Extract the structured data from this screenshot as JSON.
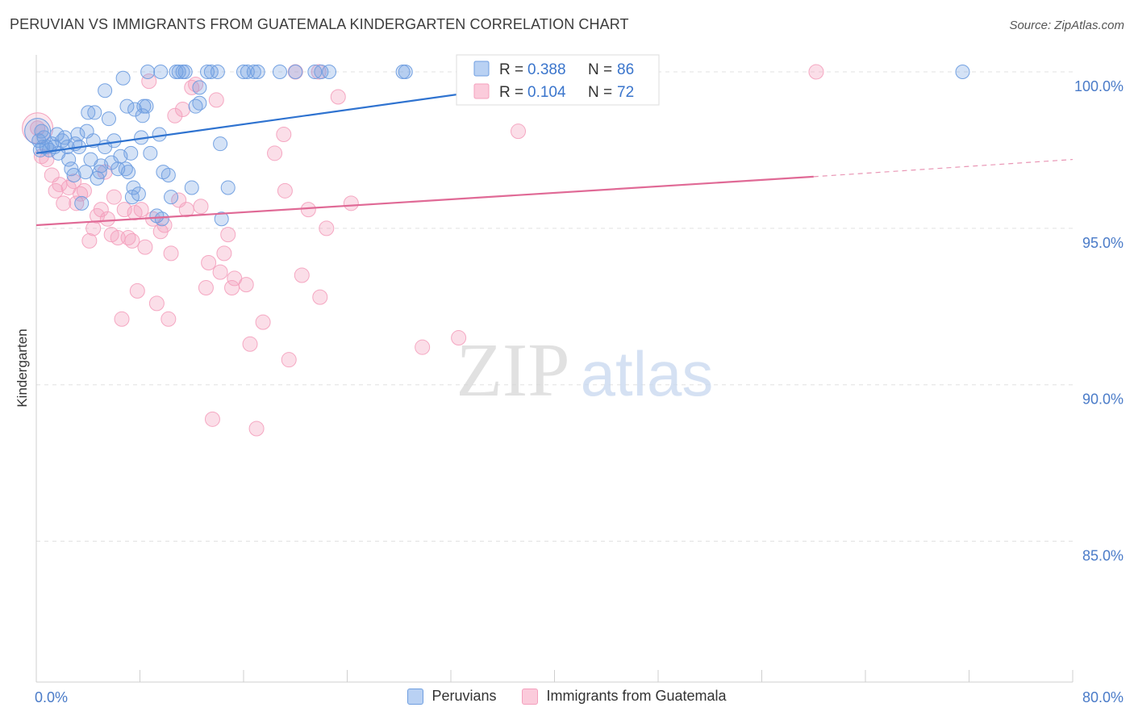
{
  "title": "PERUVIAN VS IMMIGRANTS FROM GUATEMALA KINDERGARTEN CORRELATION CHART",
  "source": "Source: ZipAtlas.com",
  "watermark": {
    "zip": "ZIP",
    "atlas": "atlas"
  },
  "colors": {
    "blue": "#6f9ee0",
    "blue_line": "#2f73d0",
    "pink": "#f4a0bd",
    "pink_line": "#e06a96",
    "axis_text": "#4a7bc8"
  },
  "stats": {
    "r_label": "R =",
    "n_label": "N =",
    "peruvians": {
      "r": "0.388",
      "n": "86"
    },
    "guatemala": {
      "r": "0.104",
      "n": "72"
    }
  },
  "legend": {
    "peruvians": "Peruvians",
    "guatemala": "Immigrants from Guatemala"
  },
  "chart_data": {
    "type": "scatter",
    "title": "PERUVIAN VS IMMIGRANTS FROM GUATEMALA KINDERGARTEN CORRELATION CHART",
    "xlabel": "",
    "ylabel": "Kindergarten",
    "xlim": [
      0,
      80
    ],
    "ylim": [
      80.5,
      100.8
    ],
    "x_tick_labels": [
      "0.0%",
      "80.0%"
    ],
    "y_ticks": [
      85,
      90,
      95,
      100
    ],
    "y_tick_labels": [
      "85.0%",
      "90.0%",
      "95.0%",
      "100.0%"
    ],
    "series": [
      {
        "name": "Peruvians",
        "trend": {
          "x": [
            0,
            45
          ],
          "y": [
            97.4,
            100.0
          ]
        },
        "points": [
          [
            0.2,
            97.8
          ],
          [
            0.3,
            97.5
          ],
          [
            0.4,
            98.1
          ],
          [
            0.5,
            97.6
          ],
          [
            0.6,
            97.9
          ],
          [
            0.8,
            97.6
          ],
          [
            1.0,
            97.5
          ],
          [
            1.2,
            97.7
          ],
          [
            1.4,
            97.6
          ],
          [
            1.6,
            98.0
          ],
          [
            1.7,
            97.4
          ],
          [
            2.0,
            97.8
          ],
          [
            2.2,
            97.9
          ],
          [
            2.4,
            97.6
          ],
          [
            2.5,
            97.2
          ],
          [
            2.7,
            96.9
          ],
          [
            3.0,
            97.7
          ],
          [
            3.2,
            98.0
          ],
          [
            3.3,
            97.6
          ],
          [
            3.5,
            95.8
          ],
          [
            3.8,
            96.8
          ],
          [
            3.9,
            98.1
          ],
          [
            4.0,
            98.7
          ],
          [
            4.2,
            97.2
          ],
          [
            4.4,
            97.8
          ],
          [
            4.5,
            98.7
          ],
          [
            4.7,
            96.6
          ],
          [
            4.9,
            96.8
          ],
          [
            5.3,
            97.6
          ],
          [
            5.3,
            99.4
          ],
          [
            5.6,
            98.5
          ],
          [
            5.8,
            97.1
          ],
          [
            6.0,
            97.8
          ],
          [
            6.3,
            96.9
          ],
          [
            6.5,
            97.3
          ],
          [
            6.7,
            99.8
          ],
          [
            6.9,
            96.9
          ],
          [
            7.0,
            98.9
          ],
          [
            7.1,
            96.8
          ],
          [
            7.3,
            97.4
          ],
          [
            7.4,
            96.0
          ],
          [
            7.5,
            96.3
          ],
          [
            7.6,
            98.8
          ],
          [
            7.9,
            96.1
          ],
          [
            8.1,
            97.9
          ],
          [
            8.2,
            98.6
          ],
          [
            8.3,
            98.9
          ],
          [
            8.5,
            98.9
          ],
          [
            8.6,
            100.0
          ],
          [
            8.8,
            97.4
          ],
          [
            9.3,
            95.4
          ],
          [
            9.5,
            98.0
          ],
          [
            9.6,
            100.0
          ],
          [
            9.8,
            96.8
          ],
          [
            10.2,
            96.7
          ],
          [
            10.4,
            96.0
          ],
          [
            10.8,
            100.0
          ],
          [
            11.0,
            100.0
          ],
          [
            11.3,
            100.0
          ],
          [
            11.5,
            100.0
          ],
          [
            12.0,
            96.3
          ],
          [
            12.3,
            98.9
          ],
          [
            12.6,
            99.0
          ],
          [
            12.6,
            99.5
          ],
          [
            13.2,
            100.0
          ],
          [
            13.5,
            100.0
          ],
          [
            14.0,
            100.0
          ],
          [
            14.2,
            97.7
          ],
          [
            14.3,
            95.3
          ],
          [
            14.8,
            96.3
          ],
          [
            16.0,
            100.0
          ],
          [
            16.3,
            100.0
          ],
          [
            16.8,
            100.0
          ],
          [
            17.1,
            100.0
          ],
          [
            18.8,
            100.0
          ],
          [
            20.0,
            100.0
          ],
          [
            21.5,
            100.0
          ],
          [
            22.0,
            100.0
          ],
          [
            22.6,
            100.0
          ],
          [
            28.3,
            100.0
          ],
          [
            28.5,
            100.0
          ],
          [
            34.8,
            100.0
          ],
          [
            71.5,
            100.0
          ],
          [
            5.0,
            97.0
          ],
          [
            2.9,
            96.7
          ],
          [
            9.7,
            95.3
          ]
        ]
      },
      {
        "name": "Immigrants from Guatemala",
        "trend": {
          "x": [
            0,
            60
          ],
          "y": [
            95.1,
            96.65
          ]
        },
        "trend_dashed": {
          "x": [
            60,
            80
          ],
          "y": [
            96.65,
            97.2
          ]
        },
        "points": [
          [
            0.1,
            98.2
          ],
          [
            0.4,
            97.3
          ],
          [
            0.8,
            97.2
          ],
          [
            1.2,
            96.7
          ],
          [
            1.5,
            96.2
          ],
          [
            1.8,
            96.4
          ],
          [
            2.1,
            95.8
          ],
          [
            2.5,
            96.3
          ],
          [
            2.9,
            96.5
          ],
          [
            3.1,
            95.8
          ],
          [
            3.4,
            96.1
          ],
          [
            3.7,
            96.2
          ],
          [
            4.1,
            94.6
          ],
          [
            4.4,
            95.0
          ],
          [
            4.7,
            95.4
          ],
          [
            5.0,
            95.6
          ],
          [
            5.3,
            96.8
          ],
          [
            5.5,
            95.3
          ],
          [
            5.8,
            94.8
          ],
          [
            6.0,
            96.0
          ],
          [
            6.3,
            94.7
          ],
          [
            6.6,
            92.1
          ],
          [
            6.8,
            95.6
          ],
          [
            7.1,
            94.7
          ],
          [
            7.4,
            94.6
          ],
          [
            7.6,
            95.5
          ],
          [
            7.8,
            93.0
          ],
          [
            8.1,
            95.6
          ],
          [
            8.4,
            94.4
          ],
          [
            8.7,
            99.7
          ],
          [
            9.0,
            95.3
          ],
          [
            9.3,
            92.6
          ],
          [
            9.6,
            94.9
          ],
          [
            9.9,
            95.1
          ],
          [
            10.2,
            92.1
          ],
          [
            10.4,
            94.2
          ],
          [
            10.7,
            98.6
          ],
          [
            11.0,
            95.9
          ],
          [
            11.3,
            98.8
          ],
          [
            11.6,
            95.6
          ],
          [
            12.0,
            99.5
          ],
          [
            12.3,
            99.6
          ],
          [
            12.7,
            95.7
          ],
          [
            13.1,
            93.1
          ],
          [
            13.3,
            93.9
          ],
          [
            13.6,
            88.9
          ],
          [
            13.9,
            99.1
          ],
          [
            14.2,
            93.6
          ],
          [
            14.5,
            94.2
          ],
          [
            14.8,
            94.8
          ],
          [
            15.1,
            93.1
          ],
          [
            15.3,
            93.4
          ],
          [
            16.2,
            93.2
          ],
          [
            16.5,
            91.3
          ],
          [
            17.0,
            88.6
          ],
          [
            17.5,
            92.0
          ],
          [
            18.4,
            97.4
          ],
          [
            19.1,
            98.0
          ],
          [
            19.2,
            96.2
          ],
          [
            19.5,
            90.8
          ],
          [
            20.5,
            93.5
          ],
          [
            21.0,
            95.6
          ],
          [
            21.9,
            92.8
          ],
          [
            22.4,
            95.0
          ],
          [
            23.3,
            99.2
          ],
          [
            24.3,
            95.8
          ],
          [
            29.8,
            91.2
          ],
          [
            32.6,
            91.5
          ],
          [
            37.2,
            98.1
          ],
          [
            60.2,
            100.0
          ],
          [
            20.0,
            100.0
          ],
          [
            21.8,
            100.0
          ]
        ]
      }
    ]
  }
}
